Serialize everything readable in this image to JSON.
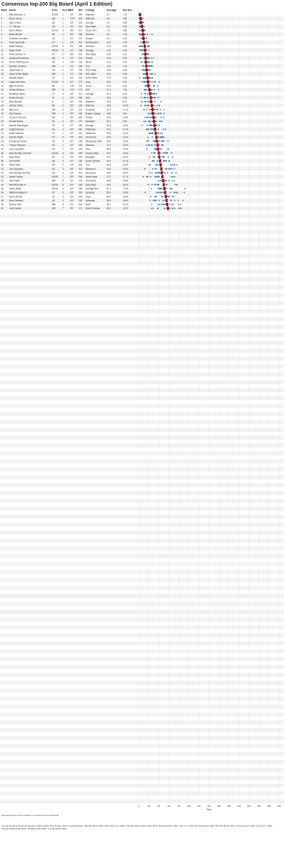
{
  "title": "Consensus top-200 Big Board (April 1 Edition)",
  "columns": [
    "Rank",
    "Name",
    "POS",
    "Pos Rk",
    "HT",
    "WT",
    "College",
    "Average",
    "Std Dev"
  ],
  "colors": {
    "dot": "#4e79a7",
    "average_marker": "#9b1c1c",
    "row_band": "#f2f2f2",
    "grid": "#e3e3e3"
  },
  "chart_data": {
    "type": "scatter",
    "title": "Consensus top-200 Big Board (April 1 Edition)",
    "xlabel": "Rank",
    "xlim": [
      0,
      280
    ],
    "x_ticks": [
      0,
      20,
      40,
      60,
      80,
      100,
      120,
      140,
      160,
      180,
      200,
      220,
      240,
      260,
      280
    ],
    "grid": true,
    "description": "One row per prospect; blue dots are individual board rankings, red bar marks the consensus average.",
    "prospects": [
      {
        "rank": 1,
        "name": "Will Anderson Jr.",
        "pos": "EDGE",
        "pos_rk": 1,
        "ht": "6'4\"",
        "wt": 253,
        "college": "Alabama",
        "avg": 2.0,
        "sd": 1.1
      },
      {
        "rank": 2,
        "name": "Bryce Young",
        "pos": "QB",
        "pos_rk": 1,
        "ht": "5'10\"",
        "wt": 204,
        "college": "Alabama",
        "avg": 3.6,
        "sd": 2.6
      },
      {
        "rank": 3,
        "name": "Jalen Carter",
        "pos": "IDL",
        "pos_rk": 1,
        "ht": "6'3\"",
        "wt": 314,
        "college": "Georgia",
        "avg": 4.2,
        "sd": 3.8
      },
      {
        "rank": 4,
        "name": "C.J. Stroud",
        "pos": "QB",
        "pos_rk": 2,
        "ht": "6'3\"",
        "wt": 214,
        "college": "Ohio State",
        "avg": 6.2,
        "sd": 3.4
      },
      {
        "rank": 5,
        "name": "Tyree Wilson",
        "pos": "EDGE",
        "pos_rk": 2,
        "ht": "6'6\"",
        "wt": 271,
        "college": "Texas Tech",
        "avg": 7.9,
        "sd": 3.8
      },
      {
        "rank": 6,
        "name": "Bryan Bresee",
        "pos": "IDL",
        "pos_rk": 2,
        "ht": "6'5\"",
        "wt": 298,
        "college": "Clemson",
        "avg": 8.4,
        "sd": 7.1
      },
      {
        "rank": 7,
        "name": "Christian Gonzalez",
        "pos": "CB",
        "pos_rk": 1,
        "ht": "6'1\"",
        "wt": 197,
        "college": "Oregon",
        "avg": 9.3,
        "sd": 4.2
      },
      {
        "rank": 8,
        "name": "Peter Skoronski",
        "pos": "OT",
        "pos_rk": 1,
        "ht": "6'4\"",
        "wt": 313,
        "college": "Northwestern",
        "avg": 10.2,
        "sd": 4.9
      },
      {
        "rank": 9,
        "name": "Myles Murphy",
        "pos": "EDGE",
        "pos_rk": 3,
        "ht": "6'5\"",
        "wt": 268,
        "college": "Clemson",
        "avg": 11.8,
        "sd": 5.6
      },
      {
        "rank": 10,
        "name": "Nolan Smith",
        "pos": "EDGE",
        "pos_rk": 4,
        "ht": "6'2\"",
        "wt": 238,
        "college": "Georgia",
        "avg": 12.5,
        "sd": 6.3
      },
      {
        "rank": 11,
        "name": "Paris Johnson Jr.",
        "pos": "OT",
        "pos_rk": 2,
        "ht": "6'6\"",
        "wt": 313,
        "college": "Ohio State",
        "avg": 13.0,
        "sd": 5.1
      },
      {
        "rank": 12,
        "name": "Anthony Richardson",
        "pos": "QB",
        "pos_rk": 3,
        "ht": "6'4\"",
        "wt": 244,
        "college": "Florida",
        "avg": 13.6,
        "sd": 6.0
      },
      {
        "rank": 13,
        "name": "Devon Witherspoon",
        "pos": "CB",
        "pos_rk": 2,
        "ht": "5'11\"",
        "wt": 181,
        "college": "Illinois",
        "avg": 14.1,
        "sd": 5.4
      },
      {
        "rank": 14,
        "name": "Quentin Johnston",
        "pos": "WR",
        "pos_rk": 1,
        "ht": "6'3\"",
        "wt": 208,
        "college": "TCU",
        "avg": 14.9,
        "sd": 7.0
      },
      {
        "rank": 15,
        "name": "Joey Porter Jr.",
        "pos": "CB",
        "pos_rk": 3,
        "ht": "6'2\"",
        "wt": 193,
        "college": "Penn State",
        "avg": 15.6,
        "sd": 6.8
      },
      {
        "rank": 16,
        "name": "Jaxon Smith-Njigba",
        "pos": "WR",
        "pos_rk": 2,
        "ht": "6'1\"",
        "wt": 196,
        "college": "Ohio State",
        "avg": 16.2,
        "sd": 6.5
      },
      {
        "rank": 17,
        "name": "Michael Mayer",
        "pos": "TE",
        "pos_rk": 1,
        "ht": "6'4\"",
        "wt": 249,
        "college": "Notre Dame",
        "avg": 17.5,
        "sd": 6.9
      },
      {
        "rank": 18,
        "name": "Lukas Van Ness",
        "pos": "EDGE",
        "pos_rk": 5,
        "ht": "6'5\"",
        "wt": 272,
        "college": "Iowa",
        "avg": 18.3,
        "sd": 8.1
      },
      {
        "rank": 19,
        "name": "Bijan Robinson",
        "pos": "RB",
        "pos_rk": 1,
        "ht": "5'11\"",
        "wt": 215,
        "college": "Texas",
        "avg": 19.0,
        "sd": 9.5
      },
      {
        "rank": 20,
        "name": "Jordan Addison",
        "pos": "WR",
        "pos_rk": 3,
        "ht": "5'11\"",
        "wt": 173,
        "college": "USC",
        "avg": 21.1,
        "sd": 7.3
      },
      {
        "rank": 21,
        "name": "Broderick Jones",
        "pos": "OT",
        "pos_rk": 3,
        "ht": "6'5\"",
        "wt": 311,
        "college": "Georgia",
        "avg": 22.4,
        "sd": 8.2
      },
      {
        "rank": 22,
        "name": "Dalton Kincaid",
        "pos": "TE",
        "pos_rk": 2,
        "ht": "6'4\"",
        "wt": 246,
        "college": "Utah",
        "avg": 23.8,
        "sd": 9.1
      },
      {
        "rank": 23,
        "name": "Brian Branch",
        "pos": "S",
        "pos_rk": 1,
        "ht": "6'0\"",
        "wt": 190,
        "college": "Alabama",
        "avg": 24.5,
        "sd": 8.7
      },
      {
        "rank": 24,
        "name": "Jahmyr Gibbs",
        "pos": "RB",
        "pos_rk": 2,
        "ht": "5'9\"",
        "wt": 199,
        "college": "Alabama",
        "avg": 26.0,
        "sd": 10.4
      },
      {
        "rank": 25,
        "name": "Will Levis",
        "pos": "QB",
        "pos_rk": 4,
        "ht": "6'4\"",
        "wt": 229,
        "college": "Kentucky",
        "avg": 27.3,
        "sd": 11.2
      },
      {
        "rank": 26,
        "name": "Zay Flowers",
        "pos": "WR",
        "pos_rk": 4,
        "ht": "5'9\"",
        "wt": 182,
        "college": "Boston College",
        "avg": 28.0,
        "sd": 9.6
      },
      {
        "rank": 27,
        "name": "O'Cyrus Torrence",
        "pos": "IOL",
        "pos_rk": 1,
        "ht": "6'5\"",
        "wt": 330,
        "college": "Florida",
        "avg": 29.4,
        "sd": 10.9
      },
      {
        "rank": 28,
        "name": "Deonte Banks",
        "pos": "CB",
        "pos_rk": 4,
        "ht": "6'0\"",
        "wt": 197,
        "college": "Maryland",
        "avg": 30.1,
        "sd": 9.8
      },
      {
        "rank": 29,
        "name": "Darnell Washington",
        "pos": "TE",
        "pos_rk": 3,
        "ht": "6'7\"",
        "wt": 264,
        "college": "Georgia",
        "avg": 31.5,
        "sd": 12.0
      },
      {
        "rank": 30,
        "name": "Calijah Kancey",
        "pos": "IDL",
        "pos_rk": 3,
        "ht": "6'0\"",
        "wt": 281,
        "college": "Pittsburgh",
        "avg": 32.2,
        "sd": 11.4
      },
      {
        "rank": 31,
        "name": "Anton Harrison",
        "pos": "OT",
        "pos_rk": 4,
        "ht": "6'4\"",
        "wt": 315,
        "college": "Oklahoma",
        "avg": 33.6,
        "sd": 12.3
      },
      {
        "rank": 32,
        "name": "Darnell Wright",
        "pos": "OT",
        "pos_rk": 5,
        "ht": "6'5\"",
        "wt": 333,
        "college": "Tennessee",
        "avg": 34.9,
        "sd": 13.1
      },
      {
        "rank": 33,
        "name": "Emmanuel Forbes",
        "pos": "CB",
        "pos_rk": 5,
        "ht": "6'0\"",
        "wt": 166,
        "college": "Mississippi State",
        "avg": 36.0,
        "sd": 12.8
      },
      {
        "rank": 34,
        "name": "Trenton Simpson",
        "pos": "LB",
        "pos_rk": 1,
        "ht": "6'2\"",
        "wt": 235,
        "college": "Clemson",
        "avg": 37.4,
        "sd": 14.0
      },
      {
        "rank": 35,
        "name": "Jack Campbell",
        "pos": "LB",
        "pos_rk": 2,
        "ht": "6'5\"",
        "wt": 249,
        "college": "Iowa",
        "avg": 38.2,
        "sd": 13.5
      },
      {
        "rank": 36,
        "name": "Felix Anudike-Uzomah",
        "pos": "EDGE",
        "pos_rk": 6,
        "ht": "6'3\"",
        "wt": 255,
        "college": "Kansas State",
        "avg": 39.7,
        "sd": 14.6
      },
      {
        "rank": 37,
        "name": "Mazi Smith",
        "pos": "IDL",
        "pos_rk": 4,
        "ht": "6'3\"",
        "wt": 323,
        "college": "Michigan",
        "avg": 41.0,
        "sd": 15.2
      },
      {
        "rank": 38,
        "name": "Cam Smith",
        "pos": "CB",
        "pos_rk": 6,
        "ht": "6'1\"",
        "wt": 180,
        "college": "South Carolina",
        "avg": 42.3,
        "sd": 14.1
      },
      {
        "rank": 39,
        "name": "Steve Avila",
        "pos": "IOL",
        "pos_rk": 2,
        "ht": "6'4\"",
        "wt": 332,
        "college": "TCU",
        "avg": 43.5,
        "sd": 15.9
      },
      {
        "rank": 40,
        "name": "Joe Tippmann",
        "pos": "IOL",
        "pos_rk": 3,
        "ht": "6'6\"",
        "wt": 313,
        "college": "Wisconsin",
        "avg": 44.8,
        "sd": 16.3
      },
      {
        "rank": 41,
        "name": "John Michael Schmitz",
        "pos": "IOL",
        "pos_rk": 4,
        "ht": "6'3\"",
        "wt": 301,
        "college": "Minnesota",
        "avg": 45.9,
        "sd": 15.7
      },
      {
        "rank": 42,
        "name": "Isaiah Foskey",
        "pos": "EDGE",
        "pos_rk": 7,
        "ht": "6'5\"",
        "wt": 264,
        "college": "Notre Dame",
        "avg": 47.2,
        "sd": 17.1
      },
      {
        "rank": 43,
        "name": "Jalin Hyatt",
        "pos": "WR",
        "pos_rk": 5,
        "ht": "6'0\"",
        "wt": 176,
        "college": "Tennessee",
        "avg": 48.6,
        "sd": 16.8
      },
      {
        "rank": 44,
        "name": "Will McDonald IV",
        "pos": "EDGE",
        "pos_rk": 8,
        "ht": "6'4\"",
        "wt": 239,
        "college": "Iowa State",
        "avg": 49.9,
        "sd": 18.2
      },
      {
        "rank": 45,
        "name": "Keion White",
        "pos": "EDGE",
        "pos_rk": 9,
        "ht": "6'5\"",
        "wt": 285,
        "college": "Georgia Tech",
        "avg": 51.3,
        "sd": 17.5
      },
      {
        "rank": 46,
        "name": "Matthew Bergeron",
        "pos": "OT",
        "pos_rk": 6,
        "ht": "6'5\"",
        "wt": 318,
        "college": "Syracuse",
        "avg": 52.6,
        "sd": 18.9
      },
      {
        "rank": 47,
        "name": "Sam LaPorta",
        "pos": "TE",
        "pos_rk": 4,
        "ht": "6'3\"",
        "wt": 245,
        "college": "Iowa",
        "avg": 54.0,
        "sd": 19.4
      },
      {
        "rank": 48,
        "name": "Drew Sanders",
        "pos": "LB",
        "pos_rk": 3,
        "ht": "6'4\"",
        "wt": 235,
        "college": "Arkansas",
        "avg": 55.4,
        "sd": 18.6
      },
      {
        "rank": 49,
        "name": "Rashee Rice",
        "pos": "WR",
        "pos_rk": 6,
        "ht": "6'1\"",
        "wt": 204,
        "college": "SMU",
        "avg": 56.7,
        "sd": 20.1
      },
      {
        "rank": 50,
        "name": "Josh Downs",
        "pos": "WR",
        "pos_rk": 7,
        "ht": "5'9\"",
        "wt": 171,
        "college": "North Carolina",
        "avg": 58.1,
        "sd": 19.7
      }
    ],
    "rows_total": 200
  },
  "footer": {
    "note": "Prospects shown were included on at least 5 of the 36 boards",
    "sources": "The big boards included are Bleacher Report (250), PFF, Brugler (300), Campbell (100), CBS Big Board (200), Draft Diamonds (250), DraftTek (300), ESPN (300), Mock Draft Database (250), NFL.com (100), PFN Big Board (300), PFN Big Board (300), Sporting News (300), Scouts Inc. (300), Ultimate Draft Guide (300), TankathonTSN (300), The Big Board (200)"
  }
}
